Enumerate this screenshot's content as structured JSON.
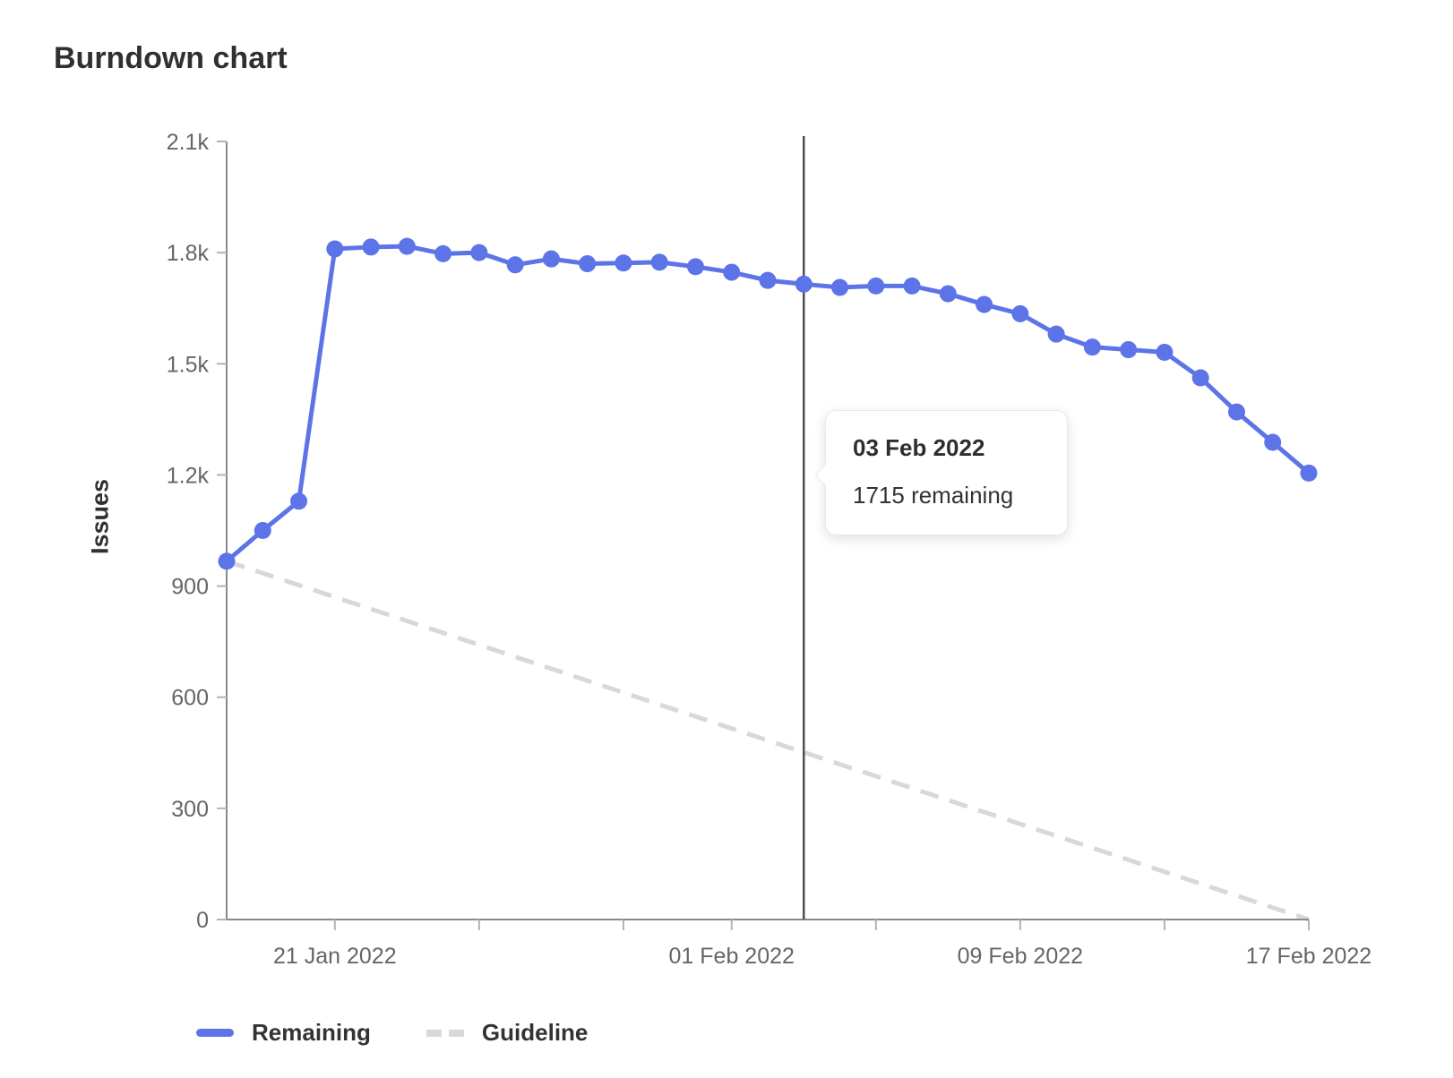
{
  "page": {
    "title": "Burndown chart"
  },
  "colors": {
    "remaining_blue": "#5c74e8",
    "guideline_gray": "#d8d8d8",
    "axis_line": "#898989",
    "tick_mark": "#b3b3b3",
    "tick_text": "#666666",
    "hover_line": "#4f4f4f",
    "title_text": "#303030"
  },
  "chart_data": {
    "type": "line",
    "title": "Burndown chart",
    "xlabel": "",
    "ylabel": "Issues",
    "ylim": [
      0,
      2100
    ],
    "grid": false,
    "legend_position": "bottom-left",
    "x": [
      "18 Jan 2022",
      "19 Jan 2022",
      "20 Jan 2022",
      "21 Jan 2022",
      "22 Jan 2022",
      "23 Jan 2022",
      "24 Jan 2022",
      "25 Jan 2022",
      "26 Jan 2022",
      "27 Jan 2022",
      "28 Jan 2022",
      "29 Jan 2022",
      "30 Jan 2022",
      "31 Jan 2022",
      "01 Feb 2022",
      "02 Feb 2022",
      "03 Feb 2022",
      "04 Feb 2022",
      "05 Feb 2022",
      "06 Feb 2022",
      "07 Feb 2022",
      "08 Feb 2022",
      "09 Feb 2022",
      "10 Feb 2022",
      "11 Feb 2022",
      "12 Feb 2022",
      "13 Feb 2022",
      "14 Feb 2022",
      "15 Feb 2022",
      "16 Feb 2022",
      "17 Feb 2022"
    ],
    "series": [
      {
        "name": "Remaining",
        "style": "solid",
        "color": "#5c74e8",
        "values": [
          967,
          1050,
          1129,
          1810,
          1815,
          1817,
          1797,
          1800,
          1767,
          1783,
          1770,
          1772,
          1774,
          1762,
          1747,
          1725,
          1715,
          1706,
          1710,
          1710,
          1689,
          1660,
          1635,
          1580,
          1545,
          1538,
          1531,
          1462,
          1370,
          1288,
          1205
        ]
      },
      {
        "name": "Guideline",
        "style": "dashed",
        "color": "#d8d8d8",
        "start_value": 967,
        "end_value": 0
      }
    ],
    "y_ticks": [
      {
        "value": 2100,
        "label": "2.1k"
      },
      {
        "value": 1800,
        "label": "1.8k"
      },
      {
        "value": 1500,
        "label": "1.5k"
      },
      {
        "value": 1200,
        "label": "1.2k"
      },
      {
        "value": 900,
        "label": "900"
      },
      {
        "value": 600,
        "label": "600"
      },
      {
        "value": 300,
        "label": "300"
      },
      {
        "value": 0,
        "label": "0"
      }
    ],
    "x_ticks": [
      {
        "index": 3,
        "label": "21 Jan 2022"
      },
      {
        "index": 7,
        "label": ""
      },
      {
        "index": 11,
        "label": ""
      },
      {
        "index": 14,
        "label": "01 Feb 2022"
      },
      {
        "index": 18,
        "label": ""
      },
      {
        "index": 22,
        "label": "09 Feb 2022"
      },
      {
        "index": 26,
        "label": ""
      },
      {
        "index": 30,
        "label": "17 Feb 2022"
      }
    ]
  },
  "tooltip": {
    "date": "03 Feb 2022",
    "text": "1715 remaining",
    "anchor_index": 16
  }
}
